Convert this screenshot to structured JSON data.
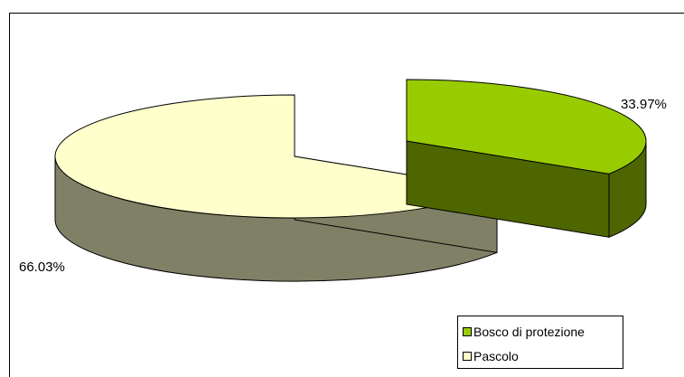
{
  "chart_data": {
    "type": "pie",
    "style": "3d-exploded",
    "categories": [
      "Bosco di protezione",
      "Pascolo"
    ],
    "values": [
      33.97,
      66.03
    ],
    "labels": [
      "33.97%",
      "66.03%"
    ],
    "title": "",
    "legend_position": "bottom-right",
    "colors": {
      "Bosco di protezione": {
        "top": "#99cc00",
        "side": "#4d6600"
      },
      "Pascolo": {
        "top": "#ffffcc",
        "side": "#808066"
      }
    }
  }
}
